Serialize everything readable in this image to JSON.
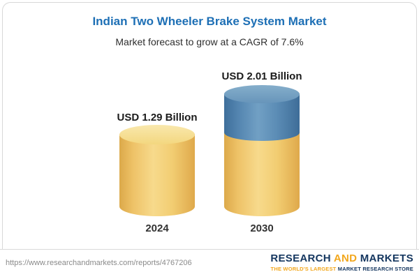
{
  "chart_data": {
    "type": "bar",
    "title": "Indian Two Wheeler Brake System Market",
    "subtitle": "Market forecast to grow at a CAGR of 7.6%",
    "unit": "USD Billion",
    "categories": [
      "2024",
      "2030"
    ],
    "values": [
      1.29,
      2.01
    ],
    "value_labels": [
      "USD 1.29 Billion",
      "USD 2.01 Billion"
    ],
    "cagr": "7.6%",
    "bar_style": "3d-cylinder; 2030 bar shows baseline portion in gold and growth portion in blue",
    "legend": "none",
    "grid": false,
    "colors": {
      "title_blue": "#1d6fb5",
      "bar_gold": "#f2cd72",
      "bar_blue": "#5586b1"
    }
  },
  "footer": {
    "url": "https://www.researchandmarkets.com/reports/4767206",
    "logo": {
      "word1": "RESEARCH ",
      "word2": "AND ",
      "word3": "MARKETS",
      "tagline_part1": "THE WORLD'S LARGEST ",
      "tagline_part2": "MARKET RESEARCH STORE"
    }
  }
}
